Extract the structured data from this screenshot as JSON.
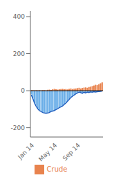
{
  "chart_data": {
    "type": "bar",
    "categories": [
      "Jan 14",
      null,
      null,
      null,
      null,
      null,
      null,
      null,
      null,
      null,
      null,
      null,
      null,
      null,
      "May 14",
      null,
      null,
      null,
      null,
      null,
      null,
      null,
      null,
      null,
      null,
      null,
      null,
      null,
      "Sep 14",
      null,
      null,
      null,
      null,
      null,
      null,
      null,
      null,
      null,
      null,
      null,
      null,
      null,
      null,
      null
    ],
    "series": [
      {
        "type": "bar",
        "color": "#6AAEE8",
        "values": [
          -20,
          -40,
          -65,
          -80,
          -95,
          -105,
          -110,
          -115,
          -118,
          -120,
          -118,
          -115,
          -110,
          -108,
          -105,
          -100,
          -95,
          -90,
          -85,
          -80,
          -72,
          -65,
          -55,
          -45,
          -35,
          -28,
          -22,
          -15,
          -10,
          -5,
          -8,
          -12,
          -6,
          -10,
          -5,
          -8,
          -4,
          -6,
          -3,
          -5,
          -3,
          -2,
          -2,
          -1
        ]
      },
      {
        "type": "bar",
        "name": "Crude",
        "color": "#E8834E",
        "values": [
          3,
          3,
          2,
          3,
          2,
          3,
          2,
          3,
          3,
          2,
          5,
          6,
          4,
          8,
          10,
          8,
          6,
          8,
          9,
          10,
          8,
          9,
          7,
          10,
          12,
          9,
          11,
          12,
          14,
          16,
          12,
          15,
          17,
          18,
          16,
          20,
          22,
          25,
          28,
          32,
          30,
          35,
          40,
          45
        ]
      },
      {
        "type": "line",
        "color": "#2060C0",
        "values": [
          -22,
          -42,
          -68,
          -84,
          -98,
          -108,
          -112,
          -118,
          -120,
          -122,
          -120,
          -118,
          -112,
          -110,
          -107,
          -102,
          -97,
          -92,
          -87,
          -82,
          -74,
          -67,
          -57,
          -47,
          -37,
          -30,
          -24,
          -17,
          -12,
          -7,
          -10,
          -14,
          -8,
          -12,
          -7,
          -10,
          -6,
          -8,
          -5,
          -7,
          -5,
          -4,
          -3,
          -2
        ]
      }
    ],
    "ylim": [
      -250,
      430
    ],
    "yticks": [
      -200,
      0,
      200,
      400
    ],
    "grid": false,
    "legend": "bottom"
  }
}
